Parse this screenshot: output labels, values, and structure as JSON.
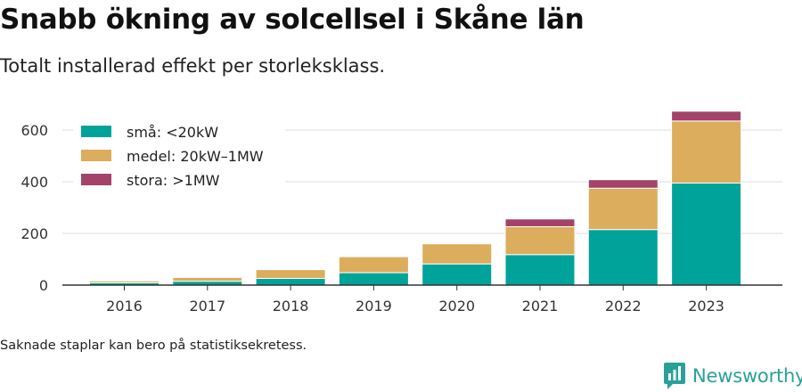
{
  "header": {
    "title": "Snabb ökning av solcellsel i Skåne län",
    "subtitle": "Totalt installerad effekt per storleksklass."
  },
  "footnote": "Saknade staplar kan bero på statistiksekretess.",
  "brand": {
    "name": "Newsworthy",
    "icon": "newsworthy-logo-icon",
    "color": "#2aa198"
  },
  "colors": {
    "sma": "#00a39a",
    "medel": "#dbad5c",
    "stora": "#a3436a",
    "grid": "#dddddd",
    "axis": "#333333"
  },
  "chart_data": {
    "type": "bar",
    "stacked": true,
    "categories": [
      "2016",
      "2017",
      "2018",
      "2019",
      "2020",
      "2021",
      "2022",
      "2023"
    ],
    "series": [
      {
        "name": "små: <20kW",
        "color": "#00a39a",
        "values": [
          9,
          15,
          26,
          48,
          82,
          118,
          215,
          395
        ]
      },
      {
        "name": "medel: 20kW–1MW",
        "color": "#dbad5c",
        "values": [
          8,
          15,
          34,
          62,
          78,
          108,
          160,
          240
        ]
      },
      {
        "name": "stora: >1MW",
        "color": "#a3436a",
        "values": [
          1,
          2,
          2,
          3,
          3,
          30,
          33,
          38
        ]
      }
    ],
    "y_ticks": [
      "0",
      "200",
      "400",
      "600"
    ],
    "ylim": [
      0,
      700
    ],
    "grid": true,
    "legend_position": "top-left",
    "xlabel": "",
    "ylabel": ""
  }
}
